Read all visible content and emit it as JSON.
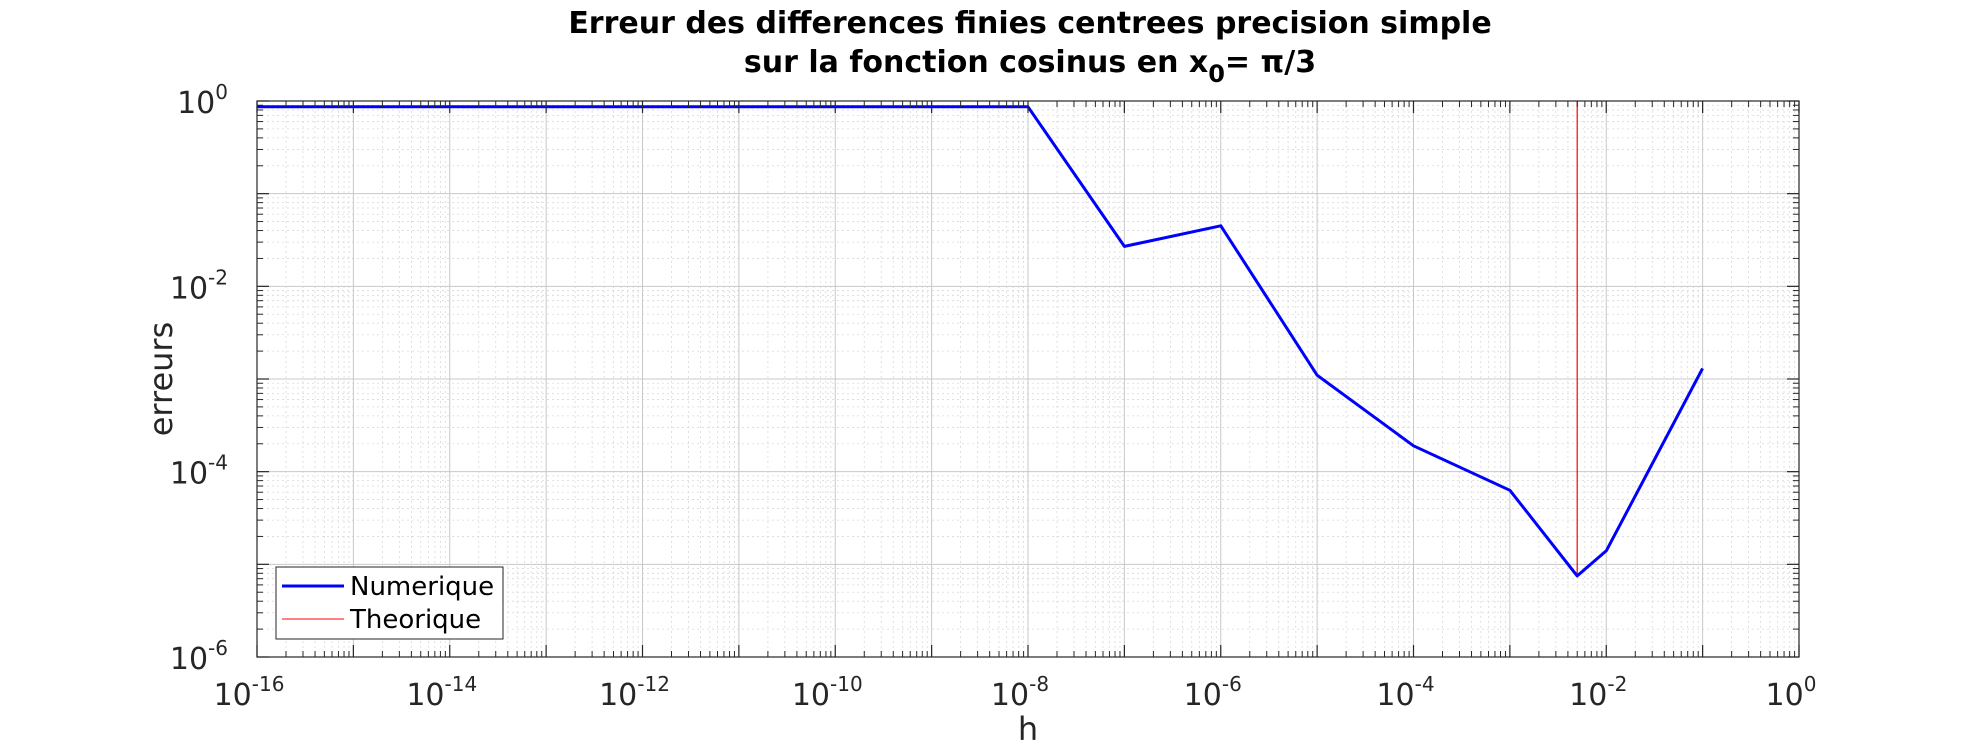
{
  "chart_data": {
    "type": "line",
    "title_line1": "Erreur des differences finies centrees precision simple",
    "title_line2_prefix": "sur la fonction cosinus en x",
    "title_line2_sub": "0",
    "title_line2_suffix": "= π/3",
    "xlabel": "h",
    "ylabel": "erreurs",
    "xscale": "log",
    "yscale": "log",
    "xlim": [
      1e-16,
      1
    ],
    "ylim": [
      1e-06,
      1
    ],
    "grid": true,
    "legend_position": "bottom-left",
    "xticks": [
      {
        "base": "10",
        "exp": "-16",
        "value": 1e-16
      },
      {
        "base": "10",
        "exp": "-14",
        "value": 1e-14
      },
      {
        "base": "10",
        "exp": "-12",
        "value": 1e-12
      },
      {
        "base": "10",
        "exp": "-10",
        "value": 1e-10
      },
      {
        "base": "10",
        "exp": "-8",
        "value": 1e-08
      },
      {
        "base": "10",
        "exp": "-6",
        "value": 1e-06
      },
      {
        "base": "10",
        "exp": "-4",
        "value": 0.0001
      },
      {
        "base": "10",
        "exp": "-2",
        "value": 0.01
      },
      {
        "base": "10",
        "exp": "0",
        "value": 1
      }
    ],
    "yticks": [
      {
        "base": "10",
        "exp": "0",
        "value": 1
      },
      {
        "base": "10",
        "exp": "-2",
        "value": 0.01
      },
      {
        "base": "10",
        "exp": "-4",
        "value": 0.0001
      },
      {
        "base": "10",
        "exp": "-6",
        "value": 1e-06
      }
    ],
    "series": [
      {
        "name": "Numerique",
        "color": "#0000ff",
        "x": [
          1e-16,
          1e-15,
          1e-14,
          1e-13,
          1e-12,
          1e-11,
          1e-10,
          1e-09,
          1e-08,
          1e-07,
          1e-06,
          1e-05,
          0.0001,
          0.001,
          0.005,
          0.01,
          0.1
        ],
        "y": [
          0.866,
          0.866,
          0.866,
          0.866,
          0.866,
          0.866,
          0.866,
          0.866,
          0.866,
          0.027,
          0.045,
          0.0011,
          0.00019,
          6.3e-05,
          7.5e-06,
          1.4e-05,
          0.0013
        ]
      },
      {
        "name": "Theorique",
        "color": "#ff0000",
        "x": [
          0.005,
          0.005
        ],
        "y": [
          1,
          7.5e-06
        ]
      }
    ]
  }
}
